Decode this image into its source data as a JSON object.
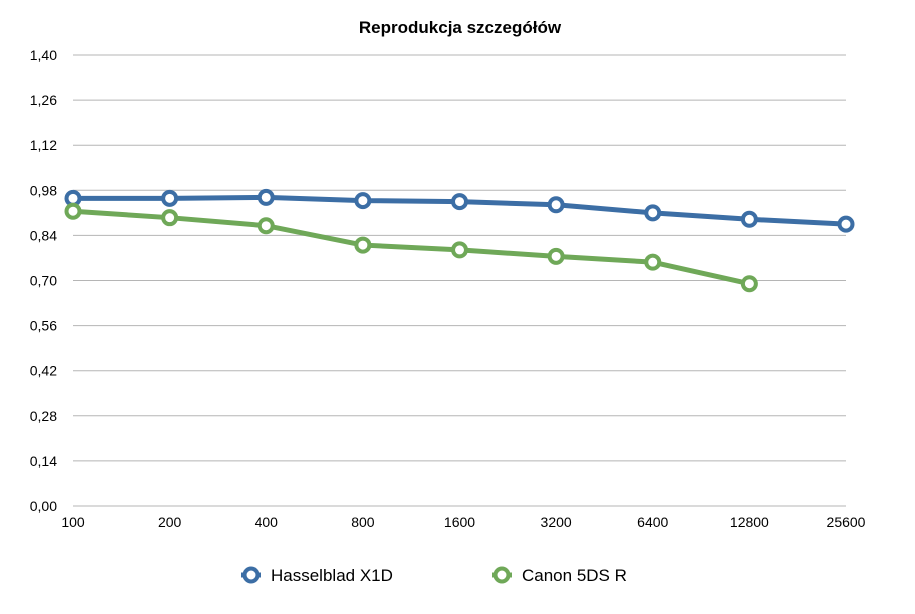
{
  "chart_data": {
    "type": "line",
    "title": "Reprodukcja szczegółów",
    "xlabel": "",
    "ylabel": "",
    "categories": [
      "100",
      "200",
      "400",
      "800",
      "1600",
      "3200",
      "6400",
      "12800",
      "25600"
    ],
    "y_ticks": [
      "0,00",
      "0,14",
      "0,28",
      "0,42",
      "0,56",
      "0,70",
      "0,84",
      "0,98",
      "1,12",
      "1,26",
      "1,40"
    ],
    "ylim": [
      0,
      1.4
    ],
    "grid": true,
    "legend_position": "bottom",
    "series": [
      {
        "name": "Hasselblad X1D",
        "color": "#3c6ea5",
        "values": [
          0.955,
          0.955,
          0.958,
          0.948,
          0.945,
          0.935,
          0.91,
          0.89,
          0.875
        ]
      },
      {
        "name": "Canon 5DS R",
        "color": "#6fa858",
        "values": [
          0.915,
          0.895,
          0.87,
          0.81,
          0.795,
          0.775,
          0.757,
          0.69,
          null
        ]
      }
    ]
  }
}
